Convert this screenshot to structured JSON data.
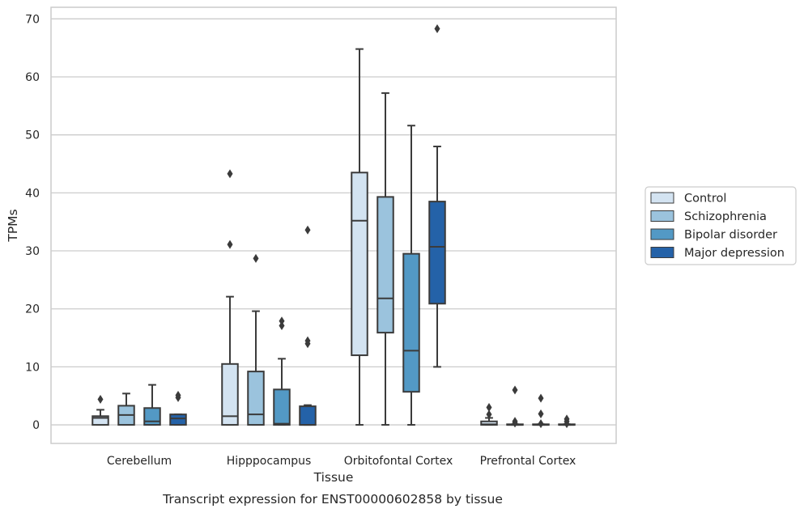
{
  "chart_data": {
    "type": "box",
    "caption": "Transcript expression for ENST00000602858 by tissue",
    "xlabel": "Tissue",
    "ylabel": "TPMs",
    "ylim": [
      -3.2,
      72
    ],
    "yticks": [
      0,
      10,
      20,
      30,
      40,
      50,
      60,
      70
    ],
    "grid": true,
    "legend_position": "right",
    "categories": [
      "Cerebellum",
      "Hipppocampus",
      "Orbitofontal Cortex",
      "Prefrontal Cortex"
    ],
    "series": [
      {
        "name": "Control",
        "color": "#d3e3f1",
        "boxes": [
          {
            "whislo": 0,
            "q1": 0,
            "med": 1.2,
            "q3": 1.5,
            "whishi": 2.6,
            "fliers": [
              4.4
            ]
          },
          {
            "whislo": 0,
            "q1": 0,
            "med": 1.5,
            "q3": 10.5,
            "whishi": 22.1,
            "fliers": [
              31.1,
              43.3
            ]
          },
          {
            "whislo": 0,
            "q1": 12.0,
            "med": 35.2,
            "q3": 43.5,
            "whishi": 64.8,
            "fliers": []
          },
          {
            "whislo": 0,
            "q1": 0,
            "med": 0.1,
            "q3": 0.6,
            "whishi": 1.2,
            "fliers": [
              1.8,
              3.0
            ]
          }
        ]
      },
      {
        "name": "Schizophrenia",
        "color": "#9bc3dd",
        "boxes": [
          {
            "whislo": 0,
            "q1": 0,
            "med": 1.7,
            "q3": 3.3,
            "whishi": 5.4,
            "fliers": []
          },
          {
            "whislo": 0,
            "q1": 0,
            "med": 1.8,
            "q3": 9.2,
            "whishi": 19.6,
            "fliers": [
              28.7
            ]
          },
          {
            "whislo": 0,
            "q1": 15.9,
            "med": 21.8,
            "q3": 39.3,
            "whishi": 57.2,
            "fliers": []
          },
          {
            "whislo": 0,
            "q1": 0,
            "med": 0,
            "q3": 0.1,
            "whishi": 0.1,
            "fliers": [
              0.3,
              0.6,
              6.0
            ]
          }
        ]
      },
      {
        "name": "Bipolar disorder",
        "color": "#5399c5",
        "boxes": [
          {
            "whislo": 0,
            "q1": 0,
            "med": 0.6,
            "q3": 2.9,
            "whishi": 6.9,
            "fliers": []
          },
          {
            "whislo": 0,
            "q1": 0,
            "med": 0.2,
            "q3": 6.1,
            "whishi": 11.4,
            "fliers": [
              17.1,
              17.9
            ]
          },
          {
            "whislo": 0,
            "q1": 5.7,
            "med": 12.8,
            "q3": 29.5,
            "whishi": 51.6,
            "fliers": []
          },
          {
            "whislo": 0,
            "q1": 0,
            "med": 0,
            "q3": 0.1,
            "whishi": 0.1,
            "fliers": [
              0.2,
              1.9,
              4.6
            ]
          }
        ]
      },
      {
        "name": "Major depression",
        "color": "#2462a8",
        "boxes": [
          {
            "whislo": 0,
            "q1": 0,
            "med": 1.1,
            "q3": 1.8,
            "whishi": 1.8,
            "fliers": [
              4.7,
              5.1
            ]
          },
          {
            "whislo": 0,
            "q1": 0,
            "med": 0,
            "q3": 3.2,
            "whishi": 3.4,
            "fliers": [
              14.0,
              14.5,
              33.6
            ]
          },
          {
            "whislo": 10.0,
            "q1": 20.9,
            "med": 30.7,
            "q3": 38.5,
            "whishi": 48.0,
            "fliers": [
              68.3
            ]
          },
          {
            "whislo": 0,
            "q1": 0,
            "med": 0,
            "q3": 0.1,
            "whishi": 0.1,
            "fliers": [
              0.2,
              0.6,
              1.0
            ]
          }
        ]
      }
    ]
  }
}
